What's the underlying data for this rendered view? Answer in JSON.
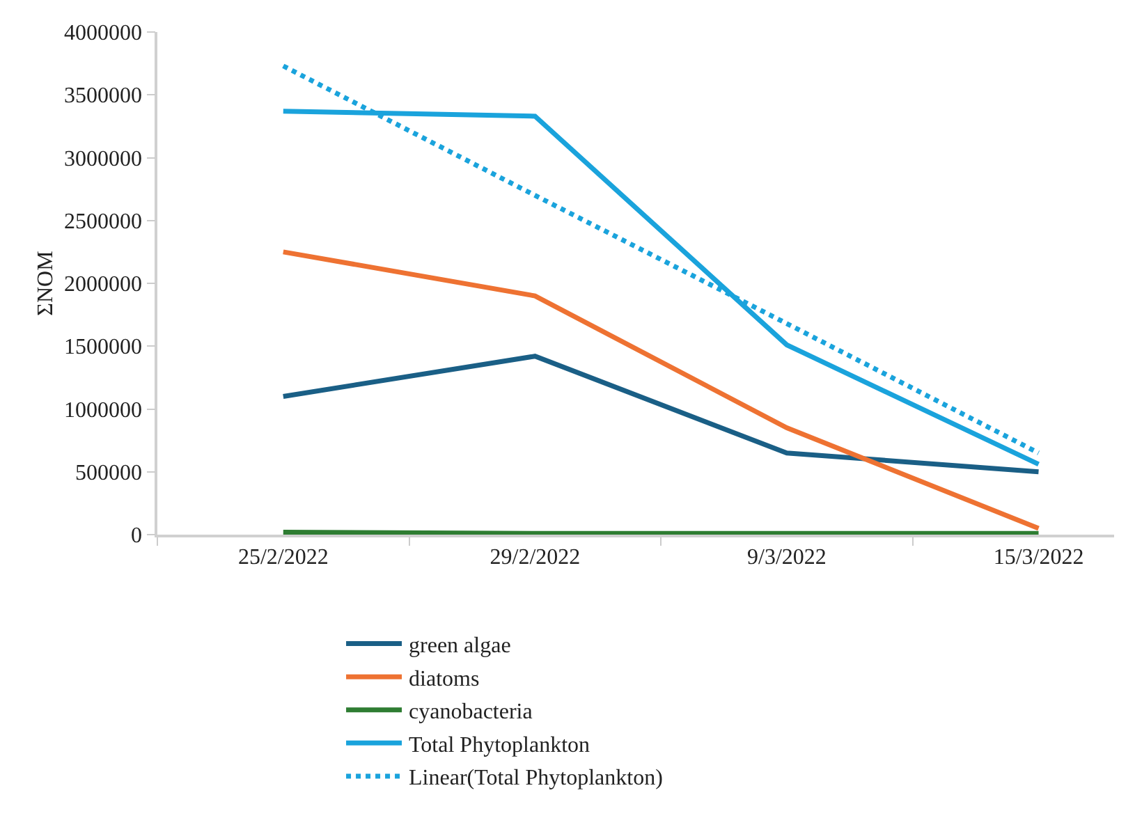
{
  "chart_data": {
    "type": "line",
    "ylabel": "ΣΝΟΜ",
    "categories": [
      "25/2/2022",
      "29/2/2022",
      "9/3/2022",
      "15/3/2022"
    ],
    "series": [
      {
        "name": "green algae",
        "color": "#1a5f86",
        "values": [
          1100000,
          1420000,
          650000,
          500000
        ]
      },
      {
        "name": "diatoms",
        "color": "#ee7232",
        "values": [
          2250000,
          1900000,
          850000,
          50000
        ]
      },
      {
        "name": "cyanobacteria",
        "color": "#2e7d32",
        "values": [
          20000,
          10000,
          10000,
          10000
        ]
      },
      {
        "name": "Total Phytoplankton",
        "color": "#1aa3dc",
        "values": [
          3370000,
          3330000,
          1510000,
          560000
        ]
      },
      {
        "name": "Linear(Total Phytoplankton)",
        "color": "#1aa3dc",
        "line_style": "dotted",
        "values": [
          3730000,
          2700000,
          1680000,
          650000
        ]
      }
    ],
    "ylim": [
      0,
      4000000
    ],
    "yticks": [
      0,
      500000,
      1000000,
      1500000,
      2000000,
      2500000,
      3000000,
      3500000,
      4000000
    ],
    "grid": false,
    "legend": "bottom",
    "marker": "none",
    "line_style": "solid"
  }
}
